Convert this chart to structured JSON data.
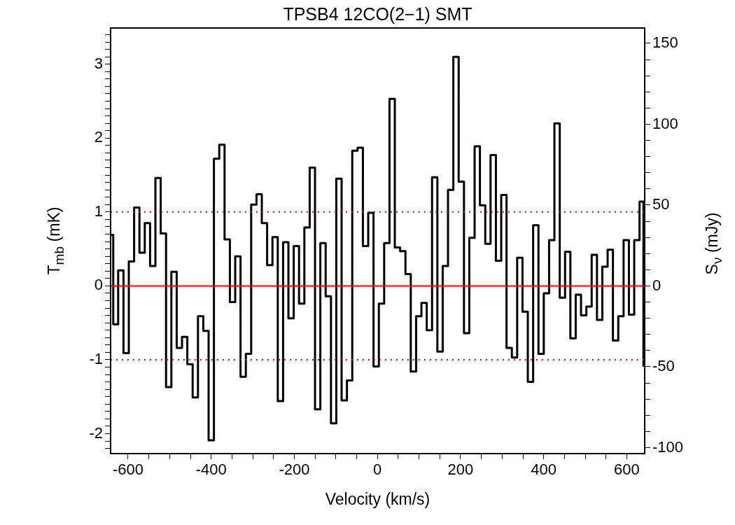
{
  "chart_data": {
    "type": "step",
    "title": "TPSB4 12CO(2−1) SMT",
    "xlabel": "Velocity (km/s)",
    "ylabel": "T$_{mb}$ (mK)",
    "y2label": "S$_{ν}$ (mJy)",
    "x": [
      -641,
      -630.2,
      -617.4,
      -604.6,
      -591.8,
      -579.0,
      -566.2,
      -553.4,
      -540.6,
      -527.8,
      -515.0,
      -502.2,
      -489.4,
      -476.6,
      -463.8,
      -451.0,
      -438.2,
      -425.4,
      -412.6,
      -399.8,
      -387.0,
      -374.2,
      -361.4,
      -348.6,
      -335.8,
      -323.0,
      -310.2,
      -297.4,
      -284.6,
      -271.8,
      -259.0,
      -246.2,
      -233.4,
      -220.6,
      -207.8,
      -195.0,
      -182.2,
      -169.4,
      -156.6,
      -143.8,
      -131.0,
      -118.2,
      -105.4,
      -92.6,
      -79.8,
      -67.0,
      -54.2,
      -41.4,
      -28.6,
      -15.8,
      -3.0,
      9.8,
      22.6,
      35.4,
      48.2,
      61.0,
      73.8,
      86.6,
      99.4,
      112.2,
      125.0,
      137.8,
      150.6,
      163.4,
      176.2,
      189.0,
      201.8,
      214.6,
      227.4,
      240.2,
      253.0,
      265.8,
      278.6,
      291.4,
      304.2,
      317.0,
      329.8,
      342.6,
      355.4,
      368.2,
      381.0,
      393.8,
      406.6,
      419.4,
      432.2,
      445.0,
      457.8,
      470.6,
      483.4,
      496.2,
      509.0,
      521.8,
      534.6,
      547.4,
      560.2,
      573.0,
      585.8,
      598.6,
      611.4,
      624.2,
      637.0,
      643
    ],
    "series": [
      {
        "color": "#000000",
        "values": [
          0.69,
          -0.52,
          0.21,
          -0.91,
          0.33,
          1.06,
          0.45,
          0.85,
          0.27,
          1.46,
          0.71,
          -1.37,
          0.19,
          -0.84,
          -0.69,
          -1.06,
          -1.51,
          -0.41,
          -0.61,
          -2.09,
          1.72,
          1.91,
          0.63,
          -0.22,
          0.4,
          -1.23,
          -0.92,
          1.1,
          1.24,
          0.85,
          0.28,
          0.66,
          -1.56,
          0.59,
          -0.44,
          0.54,
          -0.24,
          0.79,
          1.6,
          -1.67,
          0.58,
          -0.14,
          -1.86,
          1.45,
          -1.55,
          -1.28,
          1.83,
          1.87,
          0.54,
          0.99,
          -1.09,
          -0.24,
          0.58,
          2.53,
          0.52,
          0.47,
          0.16,
          -1.16,
          -0.41,
          -0.23,
          -0.6,
          1.47,
          -0.89,
          0.27,
          1.3,
          3.1,
          1.41,
          -0.64,
          0.65,
          1.89,
          1.09,
          0.57,
          1.77,
          0.34,
          1.23,
          -0.84,
          -0.97,
          0.38,
          -0.35,
          -1.3,
          0.82,
          -0.92,
          -0.1,
          0.62,
          2.2,
          -0.16,
          0.46,
          -0.71,
          -0.12,
          -0.4,
          -0.28,
          0.42,
          -0.46,
          0.26,
          0.49,
          -0.74,
          -0.41,
          0.62,
          -0.39,
          0.62,
          1.14,
          -1.08
        ]
      }
    ],
    "xlim": [
      -642,
      643
    ],
    "xticks": [
      -600,
      {
        "value": -550,
        "label": null
      },
      -400,
      {
        "value": -500,
        "label": null
      },
      {
        "value": -450,
        "label": null
      },
      {
        "value": -350,
        "label": null
      },
      {
        "value": -300,
        "label": null
      },
      {
        "value": -250,
        "label": null
      },
      -200,
      {
        "value": -150,
        "label": null
      },
      {
        "value": -100,
        "label": null
      },
      {
        "value": -50,
        "label": null
      },
      0,
      {
        "value": 50,
        "label": null
      },
      {
        "value": 100,
        "label": null
      },
      {
        "value": 150,
        "label": null
      },
      200,
      {
        "value": 250,
        "label": null
      },
      {
        "value": 300,
        "label": null
      },
      {
        "value": 350,
        "label": null
      },
      400,
      {
        "value": 450,
        "label": null
      },
      {
        "value": 500,
        "label": null
      },
      {
        "value": 550,
        "label": null
      },
      600
    ],
    "ylim": [
      -2.27,
      3.49
    ],
    "yticks": [
      -2,
      -1,
      0,
      1,
      2,
      3,
      {
        "value": -2.2,
        "label": null
      },
      {
        "value": -2.1,
        "label": null
      },
      {
        "value": -1.9,
        "label": null
      },
      {
        "value": -1.8,
        "label": null
      },
      {
        "value": -1.7,
        "label": null
      },
      {
        "value": -1.6,
        "label": null
      },
      {
        "value": -1.5,
        "label": null
      },
      {
        "value": -1.4,
        "label": null
      },
      {
        "value": -1.3,
        "label": null
      },
      {
        "value": -1.2,
        "label": null
      },
      {
        "value": -1.1,
        "label": null
      },
      {
        "value": -0.9,
        "label": null
      },
      {
        "value": -0.8,
        "label": null
      },
      {
        "value": -0.7,
        "label": null
      },
      {
        "value": -0.6,
        "label": null
      },
      {
        "value": -0.5,
        "label": null
      },
      {
        "value": -0.4,
        "label": null
      },
      {
        "value": -0.3,
        "label": null
      },
      {
        "value": -0.2,
        "label": null
      },
      {
        "value": -0.1,
        "label": null
      },
      {
        "value": 0.1,
        "label": null
      },
      {
        "value": 0.2,
        "label": null
      },
      {
        "value": 0.3,
        "label": null
      },
      {
        "value": 0.4,
        "label": null
      },
      {
        "value": 0.5,
        "label": null
      },
      {
        "value": 0.6,
        "label": null
      },
      {
        "value": 0.7,
        "label": null
      },
      {
        "value": 0.8,
        "label": null
      },
      {
        "value": 0.9,
        "label": null
      },
      {
        "value": 1.1,
        "label": null
      },
      {
        "value": 1.2,
        "label": null
      },
      {
        "value": 1.3,
        "label": null
      },
      {
        "value": 1.4,
        "label": null
      },
      {
        "value": 1.5,
        "label": null
      },
      {
        "value": 1.6,
        "label": null
      },
      {
        "value": 1.7,
        "label": null
      },
      {
        "value": 1.8,
        "label": null
      },
      {
        "value": 1.9,
        "label": null
      },
      {
        "value": 2.1,
        "label": null
      },
      {
        "value": 2.2,
        "label": null
      },
      {
        "value": 2.3,
        "label": null
      },
      {
        "value": 2.4,
        "label": null
      },
      {
        "value": 2.5,
        "label": null
      },
      {
        "value": 2.6,
        "label": null
      },
      {
        "value": 2.7,
        "label": null
      },
      {
        "value": 2.8,
        "label": null
      },
      {
        "value": 2.9,
        "label": null
      },
      {
        "value": 3.1,
        "label": null
      },
      {
        "value": 3.2,
        "label": null
      },
      {
        "value": 3.3,
        "label": null
      },
      {
        "value": 3.4,
        "label": null
      }
    ],
    "y2lim": [
      -103.7,
      159.5
    ],
    "y2ticks": [
      -100,
      -50,
      0,
      50,
      100,
      150,
      {
        "value": -90,
        "label": null
      },
      {
        "value": -80,
        "label": null
      },
      {
        "value": -70,
        "label": null
      },
      {
        "value": -60,
        "label": null
      },
      {
        "value": -40,
        "label": null
      },
      {
        "value": -30,
        "label": null
      },
      {
        "value": -20,
        "label": null
      },
      {
        "value": -10,
        "label": null
      },
      {
        "value": 10,
        "label": null
      },
      {
        "value": 20,
        "label": null
      },
      {
        "value": 30,
        "label": null
      },
      {
        "value": 40,
        "label": null
      },
      {
        "value": 60,
        "label": null
      },
      {
        "value": 70,
        "label": null
      },
      {
        "value": 80,
        "label": null
      },
      {
        "value": 90,
        "label": null
      },
      {
        "value": 110,
        "label": null
      },
      {
        "value": 120,
        "label": null
      },
      {
        "value": 130,
        "label": null
      },
      {
        "value": 140,
        "label": null
      }
    ],
    "ref_lines": [
      {
        "axis": "y",
        "value": 0,
        "color": "#ff0000",
        "line_style": "solid"
      },
      {
        "axis": "y",
        "value": 1,
        "color": "#ff0000",
        "line_style": "dotted"
      },
      {
        "axis": "y",
        "value": -1,
        "color": "#ff0000",
        "line_style": "dotted"
      }
    ]
  }
}
